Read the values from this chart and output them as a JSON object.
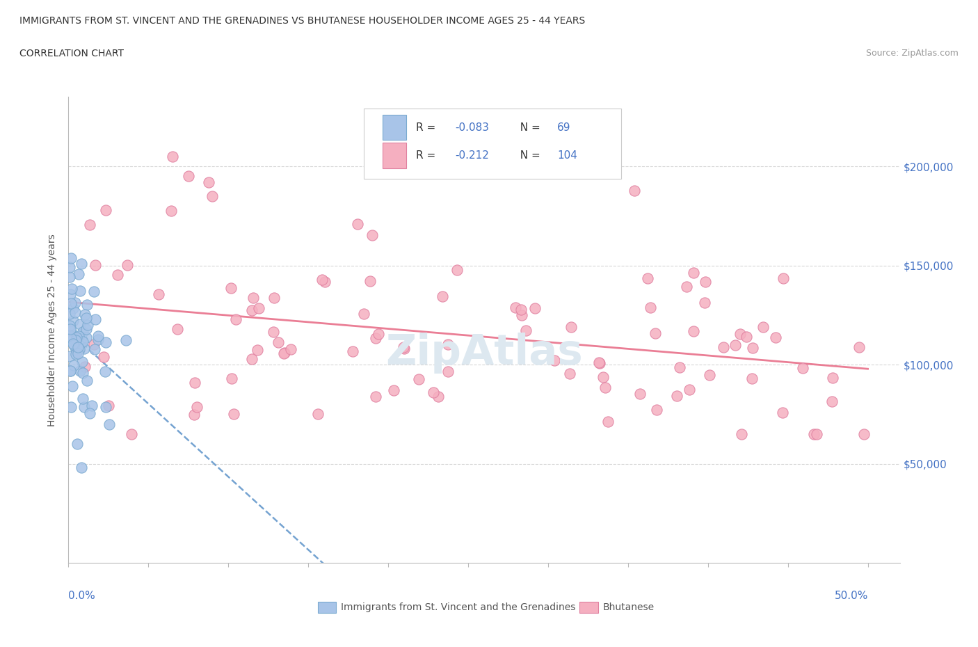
{
  "title1": "IMMIGRANTS FROM ST. VINCENT AND THE GRENADINES VS BHUTANESE HOUSEHOLDER INCOME AGES 25 - 44 YEARS",
  "title2": "CORRELATION CHART",
  "source": "Source: ZipAtlas.com",
  "ylabel": "Householder Income Ages 25 - 44 years",
  "color_vincent": "#a8c4e8",
  "color_vincent_edge": "#7aaad0",
  "color_bhutanese": "#f5afc0",
  "color_bhutanese_edge": "#e080a0",
  "color_trend_vincent": "#6699cc",
  "color_trend_bhutanese": "#e8708a",
  "color_axis_blue": "#4472c4",
  "color_grid": "#cccccc",
  "xlim": [
    0.0,
    0.52
  ],
  "ylim": [
    0,
    235000
  ],
  "yticks": [
    50000,
    100000,
    150000,
    200000
  ],
  "ytick_labels": [
    "$50,000",
    "$100,000",
    "$150,000",
    "$200,000"
  ],
  "watermark": "ZipAtlas",
  "watermark_color": "#dde8f0",
  "legend_items": [
    {
      "label": "R = -0.083   N =   69",
      "color": "#a8c4e8",
      "edge": "#7aaad0"
    },
    {
      "label": "R =  -0.212   N = 104",
      "color": "#f5afc0",
      "edge": "#e080a0"
    }
  ],
  "bottom_legend": [
    {
      "label": "Immigrants from St. Vincent and the Grenadines",
      "color": "#a8c4e8",
      "edge": "#7aaad0"
    },
    {
      "label": "Bhutanese",
      "color": "#f5afc0",
      "edge": "#e080a0"
    }
  ]
}
